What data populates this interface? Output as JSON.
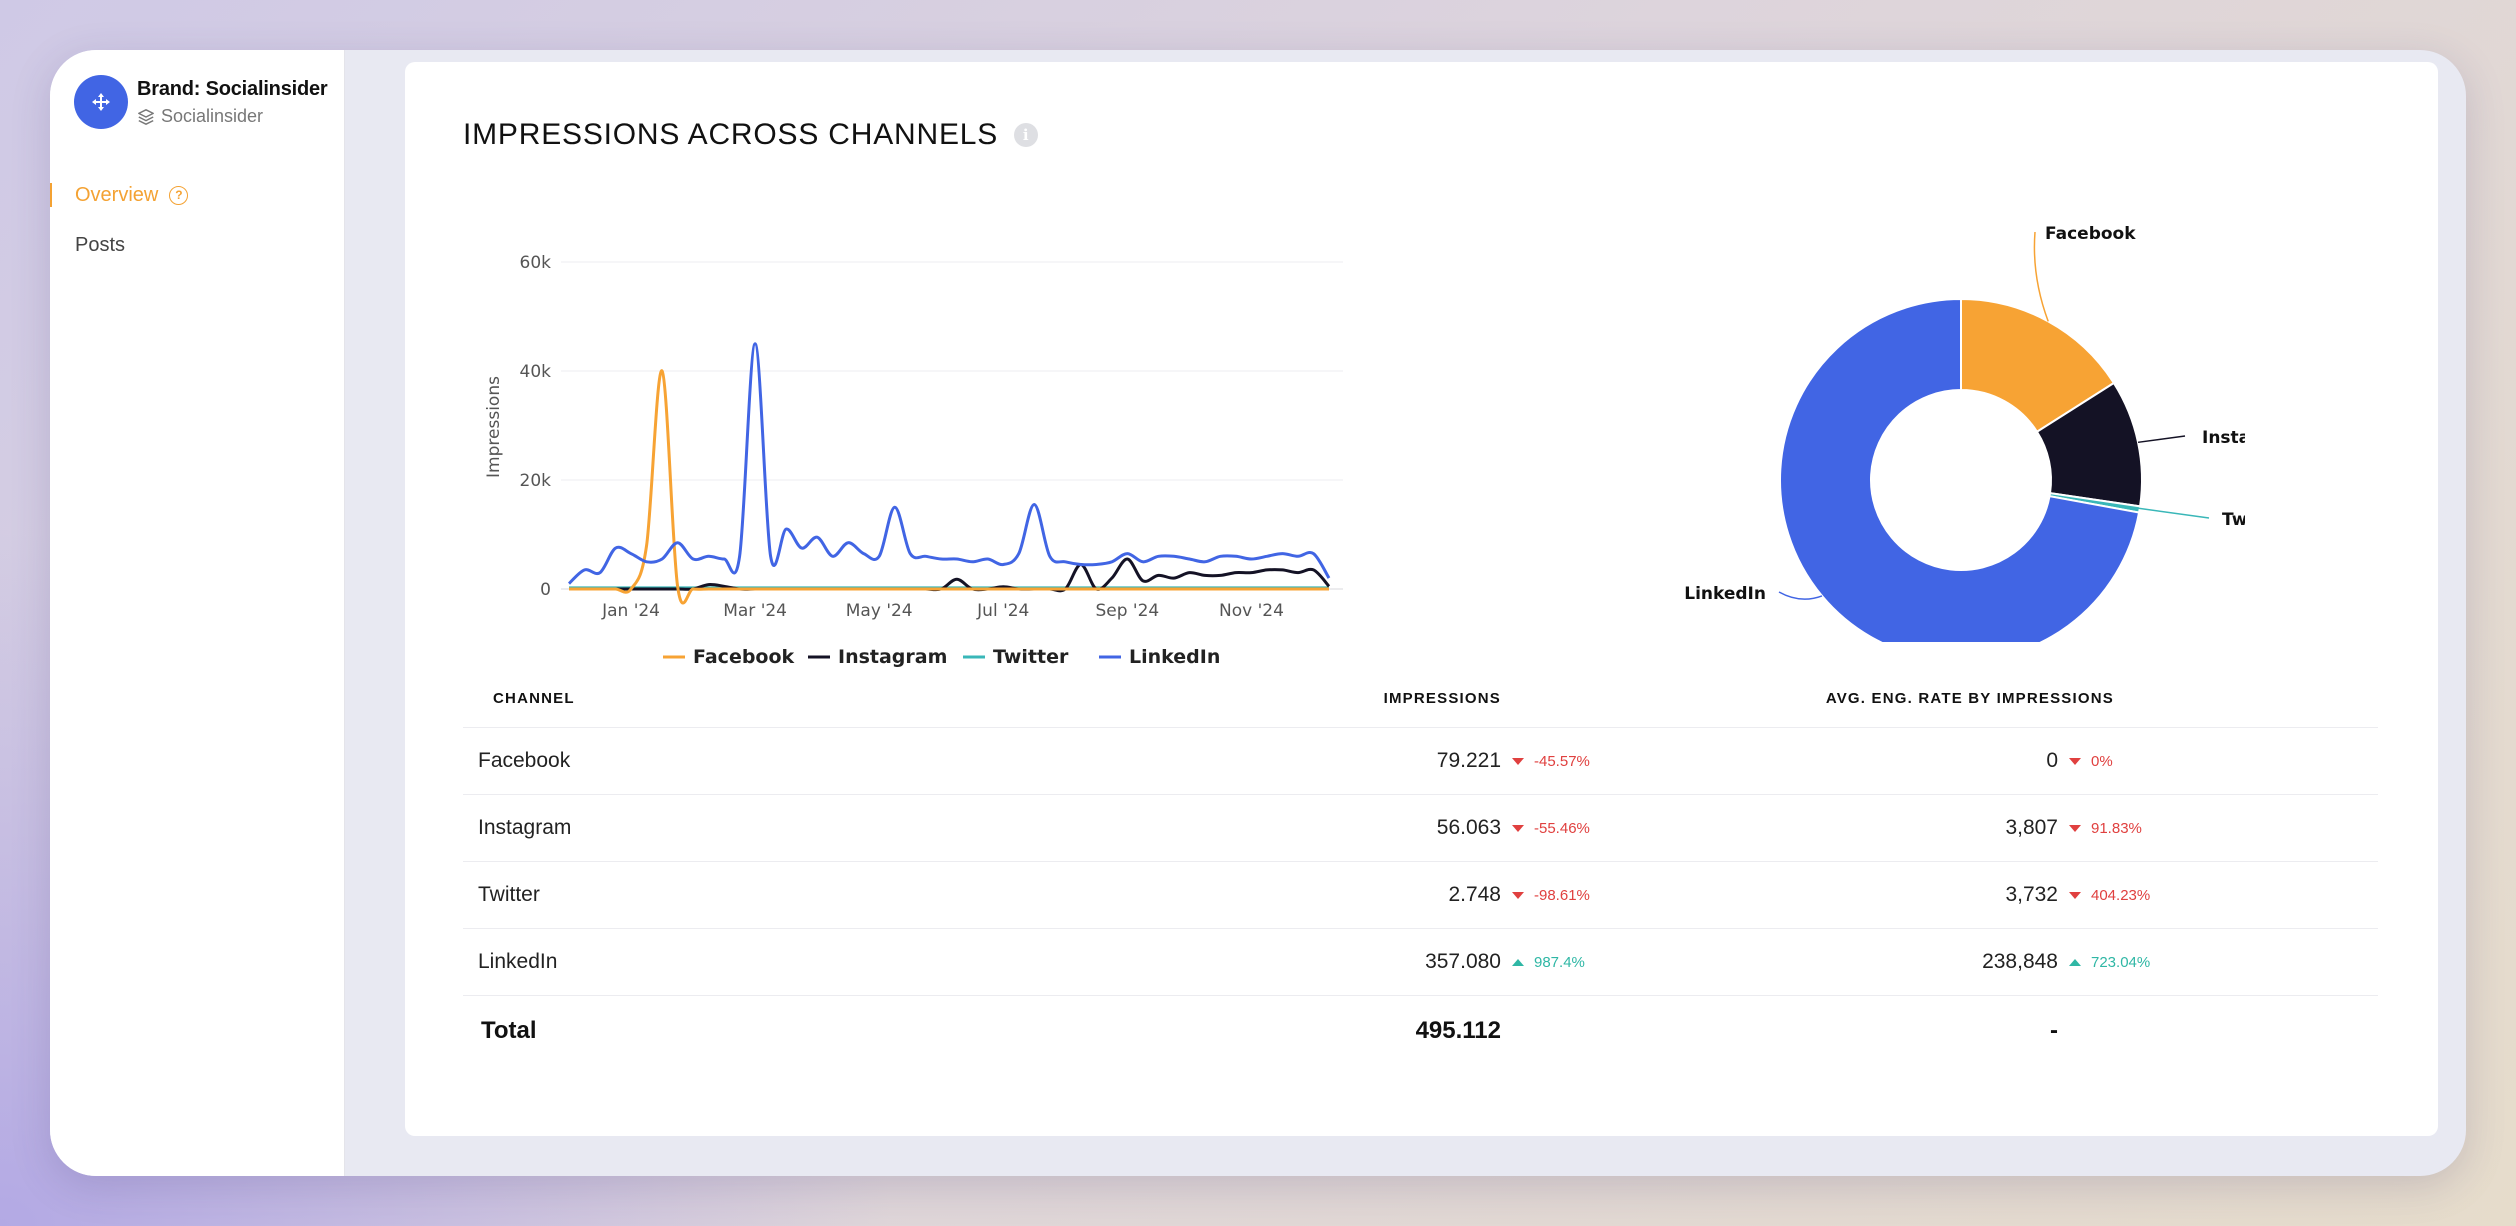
{
  "sidebar": {
    "brand_name": "Brand: Socialinsider",
    "brand_sub": "Socialinsider",
    "nav": [
      {
        "label": "Overview",
        "active": true
      },
      {
        "label": "Posts",
        "active": false
      }
    ]
  },
  "card": {
    "title": "IMPRESSIONS ACROSS CHANNELS"
  },
  "colors": {
    "Facebook": "#f7a334",
    "Instagram": "#141225",
    "Twitter": "#39b7b8",
    "LinkedIn": "#4165e4",
    "accent": "#f4a233"
  },
  "chart_data": [
    {
      "type": "line",
      "ylabel": "Impressions",
      "xlabel": "",
      "ylim": [
        0,
        60000
      ],
      "yticks": [
        {
          "v": 0,
          "label": "0"
        },
        {
          "v": 20000,
          "label": "20k"
        },
        {
          "v": 40000,
          "label": "40k"
        },
        {
          "v": 60000,
          "label": "60k"
        }
      ],
      "xticks": [
        {
          "x": 4,
          "label": "Jan '24"
        },
        {
          "x": 12,
          "label": "Mar '24"
        },
        {
          "x": 20,
          "label": "May '24"
        },
        {
          "x": 28,
          "label": "Jul '24"
        },
        {
          "x": 36,
          "label": "Sep '24"
        },
        {
          "x": 44,
          "label": "Nov '24"
        }
      ],
      "x": [
        0,
        1,
        2,
        3,
        4,
        5,
        6,
        7,
        8,
        9,
        10,
        11,
        12,
        13,
        14,
        15,
        16,
        17,
        18,
        19,
        20,
        21,
        22,
        23,
        24,
        25,
        26,
        27,
        28,
        29,
        30,
        31,
        32,
        33,
        34,
        35,
        36,
        37,
        38,
        39,
        40,
        41,
        42,
        43,
        44,
        45,
        46,
        47,
        48,
        49
      ],
      "legend_position": "bottom",
      "series": [
        {
          "name": "Facebook",
          "values": [
            0,
            0,
            0,
            0,
            0,
            8000,
            40000,
            500,
            0,
            0,
            0,
            0,
            0,
            0,
            0,
            0,
            0,
            0,
            0,
            0,
            0,
            0,
            0,
            0,
            0,
            0,
            0,
            0,
            0,
            0,
            0,
            0,
            0,
            0,
            0,
            0,
            0,
            0,
            0,
            0,
            0,
            0,
            0,
            0,
            0,
            0,
            0,
            0,
            0,
            0
          ]
        },
        {
          "name": "Instagram",
          "values": [
            0,
            0,
            0,
            0,
            0,
            0,
            0,
            0,
            0,
            800,
            500,
            0,
            0,
            0,
            0,
            0,
            0,
            0,
            0,
            0,
            0,
            0,
            0,
            0,
            0,
            1800,
            0,
            0,
            400,
            0,
            0,
            0,
            0,
            4500,
            0,
            2000,
            5500,
            1500,
            2500,
            2000,
            3000,
            2500,
            2500,
            3000,
            3000,
            3500,
            3500,
            3000,
            3500,
            500
          ]
        },
        {
          "name": "Twitter",
          "values": [
            200,
            200,
            200,
            200,
            200,
            200,
            200,
            200,
            200,
            200,
            200,
            200,
            200,
            200,
            200,
            200,
            200,
            200,
            200,
            200,
            200,
            200,
            200,
            200,
            200,
            200,
            200,
            200,
            200,
            200,
            200,
            200,
            200,
            200,
            200,
            200,
            200,
            200,
            200,
            200,
            200,
            200,
            200,
            200,
            200,
            200,
            200,
            200,
            200,
            200
          ]
        },
        {
          "name": "LinkedIn",
          "values": [
            1000,
            3500,
            3000,
            7500,
            6500,
            5000,
            5500,
            8500,
            5500,
            6000,
            5500,
            6000,
            45000,
            6000,
            11000,
            7500,
            9500,
            6000,
            8500,
            6500,
            6000,
            15000,
            6500,
            6000,
            5500,
            5500,
            5000,
            5500,
            4500,
            6500,
            15500,
            6000,
            5000,
            4500,
            4500,
            5000,
            6500,
            5000,
            6000,
            6000,
            5500,
            5000,
            6000,
            6000,
            5500,
            6000,
            6500,
            6000,
            6500,
            2000
          ]
        }
      ]
    },
    {
      "type": "pie",
      "categories": [
        "Facebook",
        "Instagram",
        "Twitter",
        "LinkedIn"
      ],
      "values": [
        79221,
        56063,
        2748,
        357080
      ]
    }
  ],
  "table": {
    "headers": {
      "channel": "CHANNEL",
      "impressions": "IMPRESSIONS",
      "eng": "AVG. ENG. RATE BY IMPRESSIONS"
    },
    "rows": [
      {
        "channel": "Facebook",
        "impressions": "79.221",
        "imp_change": "-45.57%",
        "imp_dir": "down",
        "eng": "0",
        "eng_change": "0%",
        "eng_dir": "down"
      },
      {
        "channel": "Instagram",
        "impressions": "56.063",
        "imp_change": "-55.46%",
        "imp_dir": "down",
        "eng": "3,807",
        "eng_change": "91.83%",
        "eng_dir": "down"
      },
      {
        "channel": "Twitter",
        "impressions": "2.748",
        "imp_change": "-98.61%",
        "imp_dir": "down",
        "eng": "3,732",
        "eng_change": "404.23%",
        "eng_dir": "down"
      },
      {
        "channel": "LinkedIn",
        "impressions": "357.080",
        "imp_change": "987.4%",
        "imp_dir": "up",
        "eng": "238,848",
        "eng_change": "723.04%",
        "eng_dir": "up"
      }
    ],
    "total": {
      "label": "Total",
      "impressions": "495.112",
      "eng": "-"
    }
  }
}
